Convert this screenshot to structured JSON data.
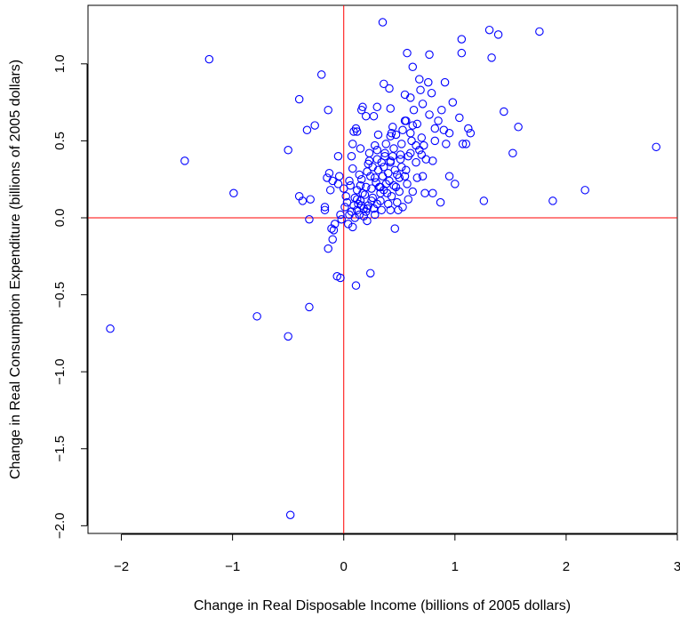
{
  "chart_data": {
    "type": "scatter",
    "title": "",
    "xlabel": "Change in Real Disposable Income (billions of 2005 dollars)",
    "ylabel": "Change in Real Consumption Expenditure (billions of 2005 dollars)",
    "xlim": [
      -2.3,
      3.0
    ],
    "ylim": [
      -2.05,
      1.38
    ],
    "xticks": [
      -2,
      -1,
      0,
      1,
      2,
      3
    ],
    "xtick_labels": [
      "−2",
      "−1",
      "0",
      "1",
      "2",
      "3"
    ],
    "yticks": [
      -2.0,
      -1.5,
      -1.0,
      -0.5,
      0.0,
      0.5,
      1.0
    ],
    "ytick_labels": [
      "−2.0",
      "−1.5",
      "−1.0",
      "−0.5",
      "0.0",
      "0.5",
      "1.0"
    ],
    "grid": false,
    "reference_lines": {
      "x": 0,
      "y": 0,
      "color": "#ff0000"
    },
    "marker": "open-circle",
    "point_color": "#0000ff",
    "points": [
      [
        -2.1,
        -0.72
      ],
      [
        -1.43,
        0.37
      ],
      [
        -1.21,
        1.03
      ],
      [
        -0.99,
        0.16
      ],
      [
        -0.78,
        -0.64
      ],
      [
        -0.48,
        -1.93
      ],
      [
        -0.5,
        -0.77
      ],
      [
        -0.31,
        -0.58
      ],
      [
        -0.5,
        0.44
      ],
      [
        -0.4,
        0.77
      ],
      [
        -0.2,
        0.93
      ],
      [
        -0.33,
        0.57
      ],
      [
        -0.26,
        0.6
      ],
      [
        -0.14,
        0.7
      ],
      [
        -0.4,
        0.14
      ],
      [
        -0.37,
        0.11
      ],
      [
        -0.3,
        0.12
      ],
      [
        -0.31,
        -0.01
      ],
      [
        -0.17,
        0.07
      ],
      [
        -0.17,
        0.05
      ],
      [
        -0.11,
        -0.07
      ],
      [
        -0.09,
        -0.08
      ],
      [
        -0.08,
        -0.04
      ],
      [
        -0.03,
        0.02
      ],
      [
        -0.02,
        -0.01
      ],
      [
        -0.1,
        -0.14
      ],
      [
        -0.14,
        -0.2
      ],
      [
        -0.06,
        -0.38
      ],
      [
        -0.03,
        -0.39
      ],
      [
        0.11,
        -0.44
      ],
      [
        0.24,
        -0.36
      ],
      [
        -0.13,
        0.29
      ],
      [
        -0.15,
        0.26
      ],
      [
        -0.1,
        0.24
      ],
      [
        -0.12,
        0.18
      ],
      [
        -0.05,
        0.4
      ],
      [
        -0.04,
        0.27
      ],
      [
        -0.05,
        0.22
      ],
      [
        0.02,
        0.14
      ],
      [
        0.03,
        0.1
      ],
      [
        0.01,
        0.07
      ],
      [
        0.05,
        0.02
      ],
      [
        0.04,
        -0.04
      ],
      [
        0.08,
        -0.06
      ],
      [
        0.0,
        0.19
      ],
      [
        0.05,
        0.24
      ],
      [
        0.06,
        0.21
      ],
      [
        0.08,
        0.32
      ],
      [
        0.07,
        0.4
      ],
      [
        0.08,
        0.48
      ],
      [
        0.11,
        0.58
      ],
      [
        0.09,
        0.56
      ],
      [
        0.1,
        0.13
      ],
      [
        0.12,
        0.18
      ],
      [
        0.13,
        0.09
      ],
      [
        0.12,
        0.05
      ],
      [
        0.14,
        0.02
      ],
      [
        0.15,
        0.11
      ],
      [
        0.15,
        0.21
      ],
      [
        0.16,
        0.25
      ],
      [
        0.17,
        0.16
      ],
      [
        0.18,
        0.06
      ],
      [
        0.2,
        0.04
      ],
      [
        0.21,
        -0.02
      ],
      [
        0.22,
        0.08
      ],
      [
        0.19,
        0.15
      ],
      [
        0.2,
        0.2
      ],
      [
        0.21,
        0.3
      ],
      [
        0.22,
        0.35
      ],
      [
        0.23,
        0.42
      ],
      [
        0.24,
        0.27
      ],
      [
        0.25,
        0.19
      ],
      [
        0.26,
        0.13
      ],
      [
        0.27,
        0.06
      ],
      [
        0.28,
        0.02
      ],
      [
        0.29,
        0.23
      ],
      [
        0.3,
        0.38
      ],
      [
        0.3,
        0.44
      ],
      [
        0.31,
        0.31
      ],
      [
        0.32,
        0.2
      ],
      [
        0.33,
        0.11
      ],
      [
        0.34,
        0.05
      ],
      [
        0.35,
        0.27
      ],
      [
        0.36,
        0.33
      ],
      [
        0.37,
        0.4
      ],
      [
        0.38,
        0.48
      ],
      [
        0.39,
        0.16
      ],
      [
        0.4,
        0.09
      ],
      [
        0.41,
        0.24
      ],
      [
        0.42,
        0.36
      ],
      [
        0.43,
        0.55
      ],
      [
        0.44,
        0.59
      ],
      [
        0.45,
        0.45
      ],
      [
        0.46,
        0.31
      ],
      [
        0.47,
        0.2
      ],
      [
        0.48,
        0.1
      ],
      [
        0.49,
        0.05
      ],
      [
        0.5,
        0.26
      ],
      [
        0.51,
        0.38
      ],
      [
        0.52,
        0.48
      ],
      [
        0.53,
        0.57
      ],
      [
        0.55,
        0.63
      ],
      [
        0.56,
        0.31
      ],
      [
        0.57,
        0.22
      ],
      [
        0.58,
        0.12
      ],
      [
        0.6,
        0.42
      ],
      [
        0.61,
        0.5
      ],
      [
        0.62,
        0.6
      ],
      [
        0.63,
        0.7
      ],
      [
        0.65,
        0.36
      ],
      [
        0.66,
        0.26
      ],
      [
        0.68,
        0.44
      ],
      [
        0.7,
        0.52
      ],
      [
        0.72,
        0.47
      ],
      [
        0.74,
        0.38
      ],
      [
        0.77,
        0.67
      ],
      [
        0.79,
        0.81
      ],
      [
        0.8,
        0.37
      ],
      [
        0.82,
        0.5
      ],
      [
        0.85,
        0.63
      ],
      [
        0.88,
        0.7
      ],
      [
        0.9,
        0.57
      ],
      [
        0.92,
        0.48
      ],
      [
        0.95,
        0.55
      ],
      [
        0.98,
        0.75
      ],
      [
        1.0,
        0.22
      ],
      [
        1.04,
        0.65
      ],
      [
        1.07,
        0.48
      ],
      [
        1.1,
        0.48
      ],
      [
        1.12,
        0.58
      ],
      [
        1.14,
        0.55
      ],
      [
        1.06,
        1.16
      ],
      [
        1.06,
        1.07
      ],
      [
        0.77,
        1.06
      ],
      [
        0.57,
        1.07
      ],
      [
        0.62,
        0.98
      ],
      [
        0.35,
        1.27
      ],
      [
        0.36,
        0.87
      ],
      [
        0.41,
        0.84
      ],
      [
        0.55,
        0.8
      ],
      [
        0.6,
        0.78
      ],
      [
        0.69,
        0.83
      ],
      [
        0.68,
        0.9
      ],
      [
        0.76,
        0.88
      ],
      [
        0.91,
        0.88
      ],
      [
        0.71,
        0.74
      ],
      [
        0.42,
        0.71
      ],
      [
        0.16,
        0.7
      ],
      [
        0.17,
        0.72
      ],
      [
        0.3,
        0.72
      ],
      [
        0.27,
        0.66
      ],
      [
        0.2,
        0.66
      ],
      [
        0.12,
        0.56
      ],
      [
        0.31,
        0.54
      ],
      [
        0.42,
        0.53
      ],
      [
        0.47,
        0.54
      ],
      [
        0.56,
        0.63
      ],
      [
        0.37,
        0.42
      ],
      [
        0.42,
        0.37
      ],
      [
        0.51,
        0.41
      ],
      [
        0.15,
        0.45
      ],
      [
        1.31,
        1.22
      ],
      [
        1.39,
        1.19
      ],
      [
        1.76,
        1.21
      ],
      [
        1.33,
        1.04
      ],
      [
        1.44,
        0.69
      ],
      [
        1.57,
        0.59
      ],
      [
        1.52,
        0.42
      ],
      [
        1.26,
        0.11
      ],
      [
        1.88,
        0.11
      ],
      [
        2.17,
        0.18
      ],
      [
        2.81,
        0.46
      ],
      [
        0.46,
        -0.07
      ],
      [
        0.8,
        0.16
      ],
      [
        0.87,
        0.1
      ],
      [
        0.95,
        0.27
      ],
      [
        0.42,
        0.05
      ],
      [
        0.53,
        0.07
      ],
      [
        0.38,
        0.22
      ],
      [
        0.23,
        0.37
      ],
      [
        0.28,
        0.47
      ],
      [
        0.33,
        0.2
      ],
      [
        0.43,
        0.14
      ],
      [
        0.62,
        0.17
      ],
      [
        0.71,
        0.27
      ],
      [
        0.73,
        0.16
      ],
      [
        0.25,
        0.11
      ],
      [
        0.18,
        0.01
      ],
      [
        0.12,
        0.12
      ],
      [
        0.09,
        0.08
      ],
      [
        0.14,
        0.28
      ],
      [
        0.26,
        0.33
      ],
      [
        0.34,
        0.36
      ],
      [
        0.48,
        0.28
      ],
      [
        0.52,
        0.33
      ],
      [
        0.58,
        0.4
      ],
      [
        0.65,
        0.47
      ],
      [
        0.7,
        0.41
      ],
      [
        0.5,
        0.17
      ],
      [
        0.45,
        0.21
      ],
      [
        0.55,
        0.27
      ],
      [
        0.33,
        0.16
      ],
      [
        0.28,
        0.26
      ],
      [
        0.16,
        0.08
      ],
      [
        0.07,
        0.04
      ],
      [
        0.1,
        0.0
      ],
      [
        0.21,
        0.06
      ],
      [
        0.3,
        0.09
      ],
      [
        0.36,
        0.18
      ],
      [
        0.4,
        0.29
      ],
      [
        0.44,
        0.4
      ],
      [
        0.6,
        0.55
      ],
      [
        0.66,
        0.61
      ],
      [
        0.82,
        0.58
      ]
    ]
  }
}
